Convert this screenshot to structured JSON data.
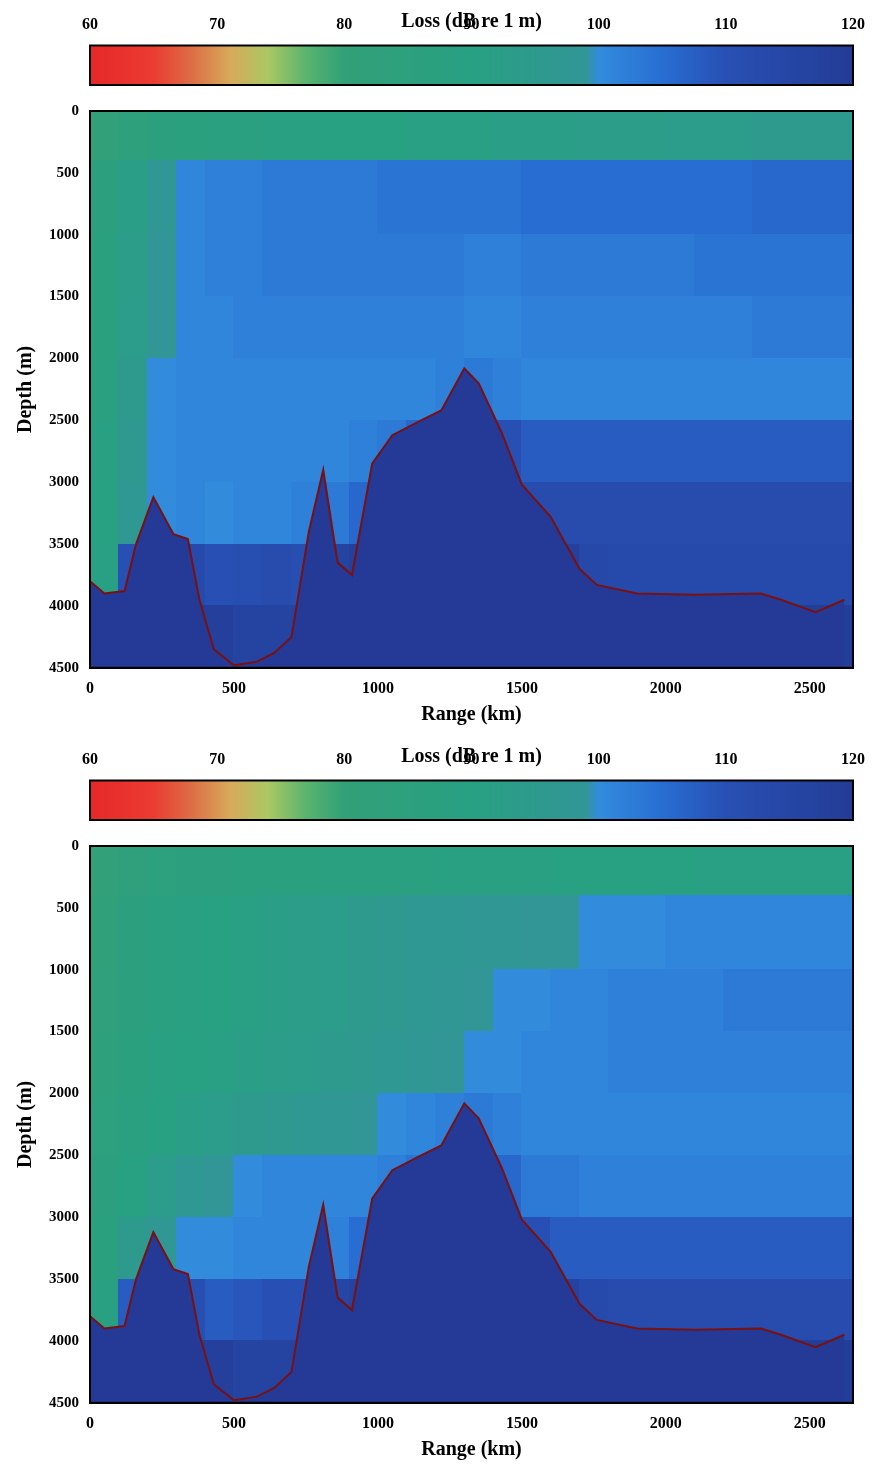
{
  "chart_data": [
    {
      "type": "heatmap",
      "colorbar_title": "Loss (dB re 1 m)",
      "colorbar_range": [
        60,
        120
      ],
      "colorbar_ticks": [
        60,
        70,
        80,
        90,
        100,
        110,
        120
      ],
      "x_label": "Range (km)",
      "y_label": "Depth (m)",
      "xlim": [
        0,
        2650
      ],
      "xticks": [
        0,
        500,
        1000,
        1500,
        2000,
        2500
      ],
      "ylim": [
        0,
        4500
      ],
      "yticks": [
        0,
        500,
        1000,
        1500,
        2000,
        2500,
        3000,
        3500,
        4000,
        4500
      ],
      "grid": false,
      "x_bins": [
        0,
        100,
        200,
        300,
        400,
        500,
        600,
        700,
        800,
        900,
        1000,
        1100,
        1200,
        1300,
        1400,
        1500,
        1600,
        1700,
        1800,
        1900,
        2000,
        2100,
        2200,
        2300,
        2400,
        2500,
        2650
      ],
      "y_bins": [
        0,
        400,
        1000,
        1500,
        2000,
        2500,
        3000,
        3500,
        4000,
        4500
      ],
      "cells": [
        [
          80,
          84,
          86,
          87,
          88,
          88,
          89,
          89,
          90,
          90,
          90,
          91,
          91,
          91,
          92,
          92,
          92,
          93,
          93,
          93,
          94,
          94,
          94,
          95,
          95,
          95
        ],
        [
          86,
          92,
          98,
          101,
          102,
          102,
          103,
          103,
          103,
          103,
          104,
          104,
          104,
          104,
          104,
          105,
          105,
          105,
          105,
          105,
          105,
          105,
          105,
          106,
          106,
          106
        ],
        [
          87,
          93,
          99,
          101,
          102,
          102,
          103,
          103,
          103,
          103,
          103,
          103,
          103,
          102,
          102,
          103,
          103,
          103,
          103,
          103,
          103,
          104,
          104,
          104,
          104,
          104
        ],
        [
          87,
          94,
          99,
          101,
          101,
          102,
          102,
          102,
          102,
          102,
          102,
          102,
          102,
          101,
          101,
          102,
          102,
          102,
          102,
          102,
          102,
          102,
          102,
          103,
          103,
          103
        ],
        [
          88,
          95,
          100,
          101,
          101,
          101,
          101,
          101,
          101,
          101,
          101,
          101,
          102,
          103,
          102,
          101,
          101,
          101,
          101,
          101,
          101,
          101,
          101,
          101,
          101,
          101
        ],
        [
          89,
          96,
          100,
          101,
          101,
          101,
          101,
          101,
          101,
          102,
          103,
          106,
          112,
          115,
          110,
          108,
          108,
          108,
          108,
          108,
          108,
          108,
          108,
          108,
          108,
          108
        ],
        [
          90,
          97,
          100,
          101,
          100,
          101,
          101,
          102,
          103,
          106,
          112,
          118,
          119,
          119,
          115,
          112,
          112,
          112,
          112,
          112,
          112,
          112,
          112,
          112,
          112,
          112
        ],
        [
          91,
          110,
          112,
          113,
          110,
          111,
          112,
          111,
          116,
          118,
          119,
          119,
          119,
          119,
          119,
          118,
          118,
          114,
          113,
          113,
          113,
          113,
          113,
          113,
          113,
          113
        ],
        [
          118,
          119,
          119,
          119,
          118,
          116,
          116,
          117,
          118,
          119,
          119,
          119,
          119,
          119,
          119,
          119,
          119,
          119,
          119,
          119,
          119,
          119,
          119,
          119,
          119,
          119
        ]
      ],
      "bathymetry": {
        "x": [
          0,
          50,
          120,
          160,
          220,
          290,
          340,
          380,
          430,
          500,
          580,
          640,
          700,
          760,
          810,
          860,
          910,
          980,
          1050,
          1150,
          1220,
          1300,
          1350,
          1430,
          1500,
          1600,
          1700,
          1760,
          1900,
          2100,
          2330,
          2400,
          2520,
          2620
        ],
        "y": [
          3800,
          3900,
          3880,
          3500,
          3120,
          3420,
          3460,
          3950,
          4350,
          4480,
          4450,
          4380,
          4250,
          3400,
          2900,
          3650,
          3750,
          2850,
          2620,
          2500,
          2420,
          2080,
          2200,
          2600,
          3020,
          3280,
          3700,
          3830,
          3900,
          3910,
          3900,
          3950,
          4050,
          3950
        ]
      }
    },
    {
      "type": "heatmap",
      "colorbar_title": "Loss (dB re 1 m)",
      "colorbar_range": [
        60,
        120
      ],
      "colorbar_ticks": [
        60,
        70,
        80,
        90,
        100,
        110,
        120
      ],
      "x_label": "Range (km)",
      "y_label": "Depth (m)",
      "xlim": [
        0,
        2650
      ],
      "xticks": [
        0,
        500,
        1000,
        1500,
        2000,
        2500
      ],
      "ylim": [
        0,
        4500
      ],
      "yticks": [
        0,
        500,
        1000,
        1500,
        2000,
        2500,
        3000,
        3500,
        4000,
        4500
      ],
      "grid": false,
      "x_bins": [
        0,
        100,
        200,
        300,
        400,
        500,
        600,
        700,
        800,
        900,
        1000,
        1100,
        1200,
        1300,
        1400,
        1500,
        1600,
        1700,
        1800,
        1900,
        2000,
        2100,
        2200,
        2300,
        2400,
        2500,
        2650
      ],
      "y_bins": [
        0,
        400,
        1000,
        1500,
        2000,
        2500,
        3000,
        3500,
        4000,
        4500
      ],
      "cells": [
        [
          80,
          83,
          85,
          86,
          86,
          87,
          87,
          87,
          88,
          88,
          88,
          88,
          89,
          89,
          89,
          89,
          90,
          90,
          90,
          90,
          90,
          91,
          91,
          91,
          91,
          91
        ],
        [
          82,
          86,
          88,
          89,
          90,
          91,
          92,
          93,
          94,
          95,
          96,
          97,
          97,
          98,
          98,
          99,
          99,
          100,
          100,
          100,
          101,
          101,
          101,
          101,
          101,
          101
        ],
        [
          83,
          86,
          88,
          89,
          90,
          91,
          92,
          93,
          94,
          95,
          96,
          97,
          98,
          99,
          100,
          100,
          101,
          101,
          102,
          102,
          102,
          102,
          103,
          103,
          103,
          103
        ],
        [
          84,
          87,
          89,
          90,
          91,
          92,
          93,
          94,
          95,
          96,
          97,
          98,
          99,
          100,
          100,
          101,
          101,
          101,
          102,
          102,
          102,
          102,
          102,
          102,
          102,
          102
        ],
        [
          85,
          88,
          90,
          92,
          94,
          95,
          96,
          97,
          98,
          99,
          100,
          101,
          102,
          103,
          102,
          101,
          101,
          101,
          101,
          101,
          101,
          101,
          101,
          101,
          101,
          101
        ],
        [
          86,
          90,
          94,
          97,
          99,
          100,
          101,
          101,
          101,
          101,
          102,
          104,
          110,
          113,
          106,
          103,
          103,
          102,
          102,
          102,
          102,
          102,
          102,
          102,
          102,
          102
        ],
        [
          87,
          95,
          98,
          100,
          100,
          101,
          101,
          101,
          102,
          105,
          111,
          117,
          119,
          119,
          114,
          110,
          108,
          108,
          108,
          108,
          108,
          108,
          108,
          108,
          108,
          108
        ],
        [
          89,
          108,
          110,
          111,
          108,
          109,
          110,
          110,
          115,
          117,
          119,
          119,
          119,
          119,
          119,
          118,
          117,
          113,
          112,
          112,
          112,
          112,
          112,
          112,
          112,
          112
        ],
        [
          118,
          119,
          119,
          119,
          118,
          116,
          116,
          117,
          118,
          119,
          119,
          119,
          119,
          119,
          119,
          119,
          119,
          119,
          119,
          119,
          119,
          119,
          119,
          119,
          119,
          119
        ]
      ],
      "bathymetry": {
        "x": [
          0,
          50,
          120,
          160,
          220,
          290,
          340,
          380,
          430,
          500,
          580,
          640,
          700,
          760,
          810,
          860,
          910,
          980,
          1050,
          1150,
          1220,
          1300,
          1350,
          1430,
          1500,
          1600,
          1700,
          1760,
          1900,
          2100,
          2330,
          2400,
          2520,
          2620
        ],
        "y": [
          3800,
          3900,
          3880,
          3500,
          3120,
          3420,
          3460,
          3950,
          4350,
          4480,
          4450,
          4380,
          4250,
          3400,
          2900,
          3650,
          3750,
          2850,
          2620,
          2500,
          2420,
          2080,
          2200,
          2600,
          3020,
          3280,
          3700,
          3830,
          3900,
          3910,
          3900,
          3950,
          4050,
          3950
        ]
      }
    }
  ]
}
